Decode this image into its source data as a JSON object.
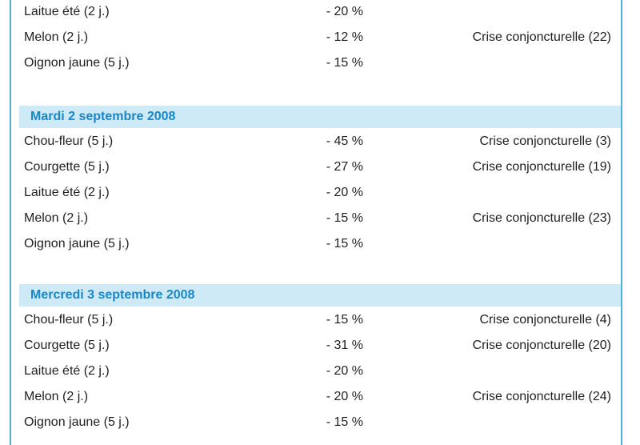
{
  "top_rows": [
    {
      "product": "Laitue été (2 j.)",
      "change": "- 20 %",
      "status": ""
    },
    {
      "product": "Melon (2 j.)",
      "change": "- 12 %",
      "status": "Crise conjoncturelle (22)"
    },
    {
      "product": "Oignon jaune (5 j.)",
      "change": "- 15 %",
      "status": ""
    }
  ],
  "sections": [
    {
      "title": "Mardi 2 septembre 2008",
      "rows": [
        {
          "product": "Chou-fleur (5 j.)",
          "change": "- 45 %",
          "status": "Crise conjoncturelle (3)"
        },
        {
          "product": "Courgette (5 j.)",
          "change": "- 27 %",
          "status": "Crise conjoncturelle (19)"
        },
        {
          "product": "Laitue été (2 j.)",
          "change": "- 20 %",
          "status": ""
        },
        {
          "product": "Melon (2 j.)",
          "change": "- 15 %",
          "status": "Crise conjoncturelle (23)"
        },
        {
          "product": "Oignon jaune (5 j.)",
          "change": "- 15 %",
          "status": ""
        }
      ]
    },
    {
      "title": "Mercredi 3 septembre 2008",
      "rows": [
        {
          "product": "Chou-fleur (5 j.)",
          "change": "- 15 %",
          "status": "Crise conjoncturelle (4)"
        },
        {
          "product": "Courgette (5 j.)",
          "change": "- 31 %",
          "status": "Crise conjoncturelle (20)"
        },
        {
          "product": "Laitue été (2 j.)",
          "change": "- 20 %",
          "status": ""
        },
        {
          "product": "Melon (2 j.)",
          "change": "- 20 %",
          "status": "Crise conjoncturelle (24)"
        },
        {
          "product": "Oignon jaune (5 j.)",
          "change": "- 15 %",
          "status": ""
        }
      ]
    }
  ],
  "colors": {
    "header_background": "#cdeaf6",
    "header_text": "#1b86c6",
    "frame_border": "#4fb3d9"
  }
}
